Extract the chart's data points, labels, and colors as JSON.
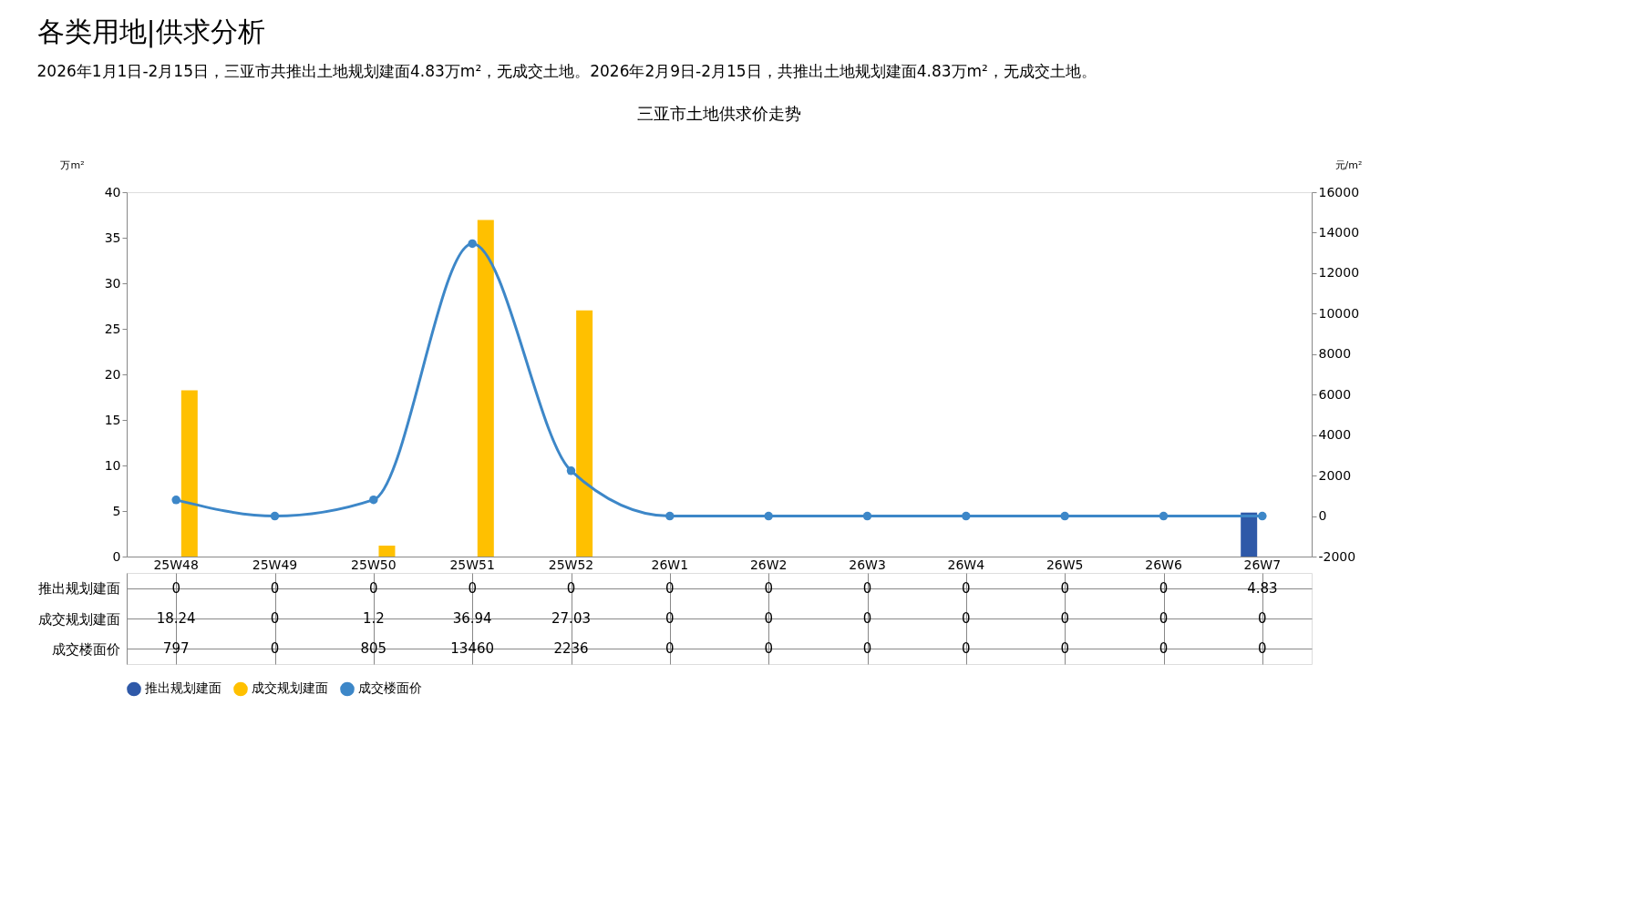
{
  "chart_data": {
    "type": "bar",
    "title": "三亚市土地供求价走势",
    "annotations": [
      "各类用地|供求分析",
      "2026年1月1日-2月15日，三亚市共推出土地规划建面4.83万m²，无成交土地。2026年2月9日-2月15日，共推出土地规划建面4.83万m²，无成交土地。"
    ],
    "ylabel": "万m²",
    "y2label": "元/m²",
    "categories": [
      "25W48",
      "25W49",
      "25W50",
      "25W51",
      "25W52",
      "26W1",
      "26W2",
      "26W3",
      "26W4",
      "26W5",
      "26W6",
      "26W7"
    ],
    "series": [
      {
        "name": "推出规划建面",
        "color": "#2f59a8",
        "values": [
          0,
          0,
          0,
          0,
          0,
          0,
          0,
          0,
          0,
          0,
          0,
          4.83
        ]
      },
      {
        "name": "成交规划建面",
        "color": "#ffc000",
        "values": [
          18.24,
          0,
          1.2,
          36.94,
          27.03,
          0,
          0,
          0,
          0,
          0,
          0,
          0
        ]
      },
      {
        "name": "成交楼面价",
        "type": "line",
        "axis": "y2",
        "color": "#3d87c8",
        "values": [
          797,
          0,
          805,
          13460,
          2236,
          0,
          0,
          0,
          0,
          0,
          0,
          0
        ]
      }
    ],
    "ylim": [
      0,
      40
    ],
    "yticks": [
      0,
      5,
      10,
      15,
      20,
      25,
      30,
      35,
      40
    ],
    "y2lim": [
      -2000,
      16000
    ],
    "y2ticks": [
      -2000,
      0,
      2000,
      4000,
      6000,
      8000,
      10000,
      12000,
      14000,
      16000
    ],
    "data_labels": true,
    "grid": false,
    "legend": "bottom",
    "marker": "circle",
    "line_style": "solid"
  }
}
